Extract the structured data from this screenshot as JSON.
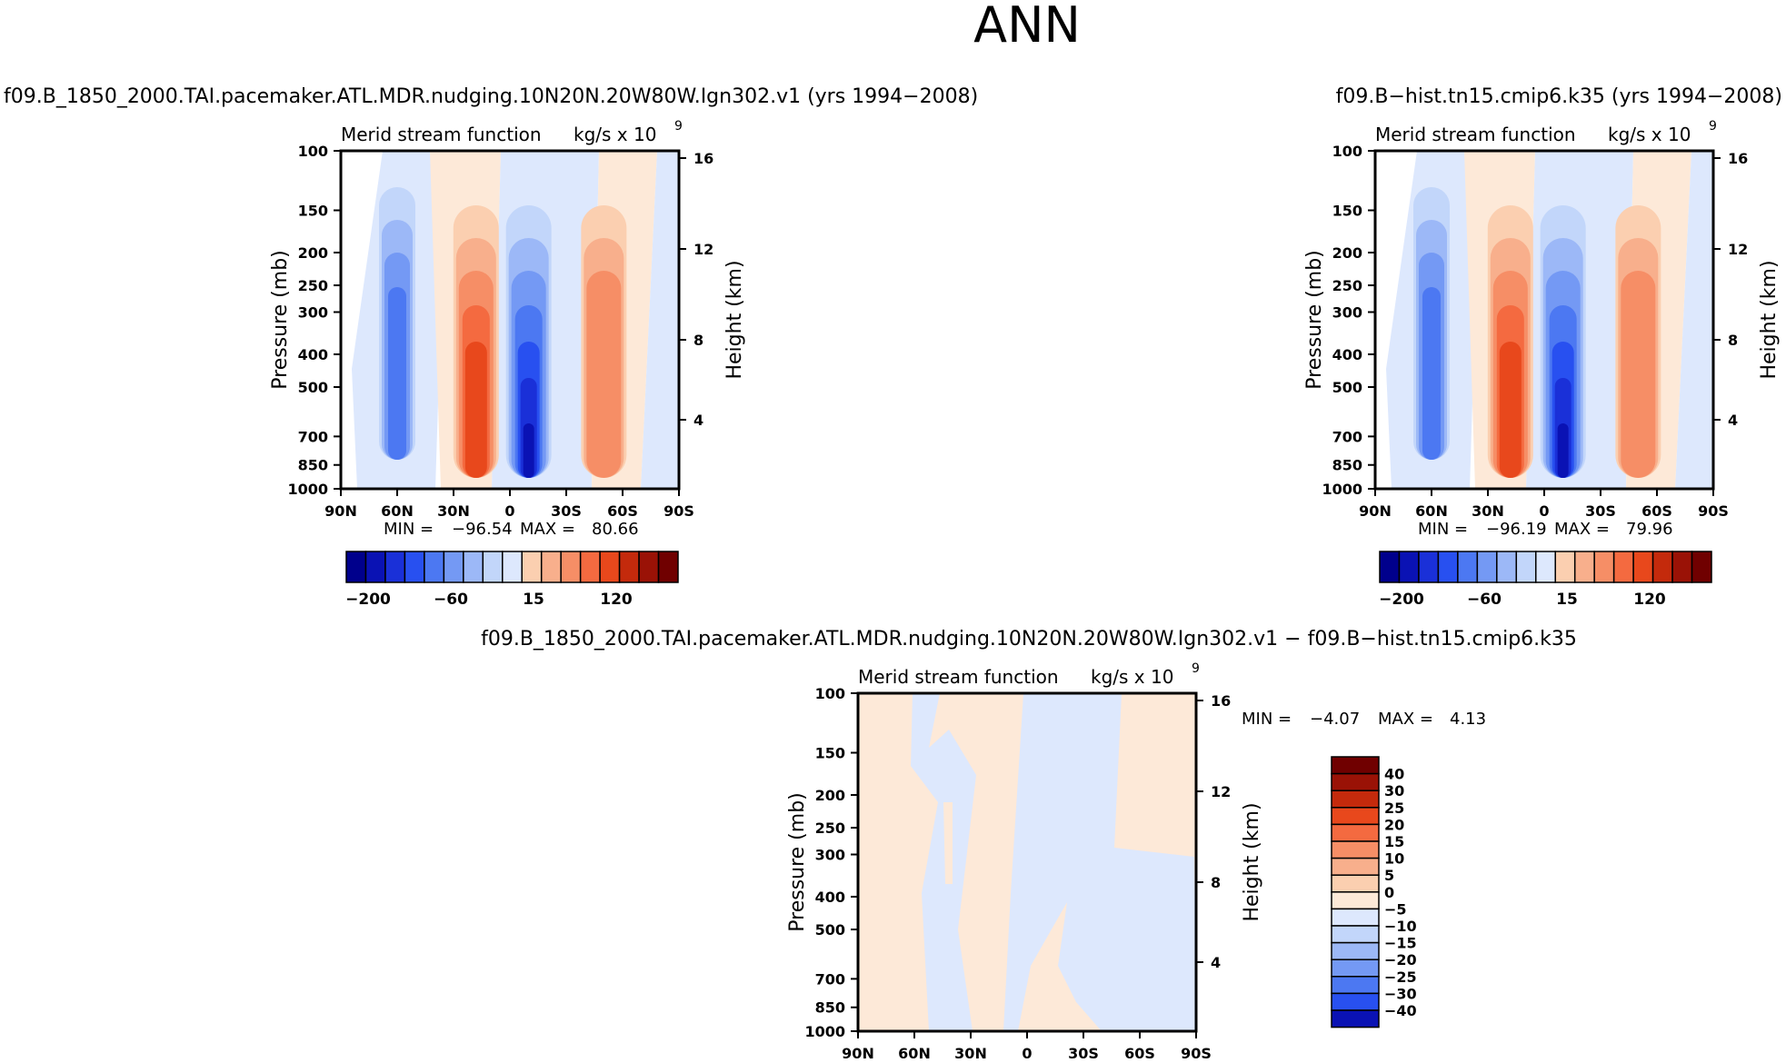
{
  "page_title": "ANN",
  "colors": {
    "neg": [
      "#00008c",
      "#0a12b4",
      "#1a30d8",
      "#2850f0",
      "#4c78f2",
      "#7499f4",
      "#9cb8f7",
      "#c2d6fa",
      "#dde8fd"
    ],
    "pos": [
      "#fde9d8",
      "#fbcfb0",
      "#f8af8c",
      "#f68e66",
      "#f46a40",
      "#e8481c",
      "#c42a0c",
      "#9a1206",
      "#700000"
    ]
  },
  "chart_data": [
    {
      "id": "panel1",
      "type": "contour",
      "run_title": "f09.B_1850_2000.TAI.pacemaker.ATL.MDR.nudging.10N20N.20W80W.Ign302.v1  (yrs  1994−2008)",
      "field_label": "Merid  stream  function",
      "units_label": "kg/s  x  10",
      "units_exp": "9",
      "ylabel": "Pressure  (mb)",
      "y2label": "Height  (km)",
      "yticks": [
        "100",
        "150",
        "200",
        "250",
        "300",
        "400",
        "500",
        "700",
        "850",
        "1000"
      ],
      "y2ticks": [
        "16",
        "12",
        "8",
        "4"
      ],
      "xticks": [
        "90N",
        "60N",
        "30N",
        "0",
        "30S",
        "60S",
        "90S"
      ],
      "min_label": "MIN  =",
      "min_value": "−96.54",
      "max_label": "MAX  =",
      "max_value": "80.66",
      "colorbar_labels": [
        "−200",
        "−60",
        "15",
        "120"
      ],
      "cells": [
        {
          "lat": 60,
          "sign": "neg",
          "peak_level": 4
        },
        {
          "lat": 18,
          "sign": "pos",
          "peak_level": 5
        },
        {
          "lat": -10,
          "sign": "neg",
          "peak_level": 7
        },
        {
          "lat": -50,
          "sign": "pos",
          "peak_level": 3
        }
      ]
    },
    {
      "id": "panel2",
      "type": "contour",
      "run_title": "f09.B−hist.tn15.cmip6.k35  (yrs  1994−2008)",
      "field_label": "Merid  stream  function",
      "units_label": "kg/s  x  10",
      "units_exp": "9",
      "ylabel": "Pressure  (mb)",
      "y2label": "Height  (km)",
      "yticks": [
        "100",
        "150",
        "200",
        "250",
        "300",
        "400",
        "500",
        "700",
        "850",
        "1000"
      ],
      "y2ticks": [
        "16",
        "12",
        "8",
        "4"
      ],
      "xticks": [
        "90N",
        "60N",
        "30N",
        "0",
        "30S",
        "60S",
        "90S"
      ],
      "min_label": "MIN  =",
      "min_value": "−96.19",
      "max_label": "MAX  =",
      "max_value": "79.96",
      "colorbar_labels": [
        "−200",
        "−60",
        "15",
        "120"
      ],
      "cells": [
        {
          "lat": 60,
          "sign": "neg",
          "peak_level": 4
        },
        {
          "lat": 18,
          "sign": "pos",
          "peak_level": 5
        },
        {
          "lat": -10,
          "sign": "neg",
          "peak_level": 7
        },
        {
          "lat": -50,
          "sign": "pos",
          "peak_level": 3
        }
      ]
    },
    {
      "id": "panel3",
      "type": "contour",
      "run_title": "f09.B_1850_2000.TAI.pacemaker.ATL.MDR.nudging.10N20N.20W80W.Ign302.v1  −  f09.B−hist.tn15.cmip6.k35",
      "field_label": "Merid  stream  function",
      "units_label": "kg/s  x  10",
      "units_exp": "9",
      "ylabel": "Pressure  (mb)",
      "y2label": "Height  (km)",
      "yticks": [
        "100",
        "150",
        "200",
        "250",
        "300",
        "400",
        "500",
        "700",
        "850",
        "1000"
      ],
      "y2ticks": [
        "16",
        "12",
        "8",
        "4"
      ],
      "xticks": [
        "90N",
        "60N",
        "30N",
        "0",
        "30S",
        "60S",
        "90S"
      ],
      "min_label": "MIN  =",
      "min_value": "−4.07",
      "max_label": "MAX  =",
      "max_value": "4.13",
      "colorbar_labels": [
        "40",
        "30",
        "25",
        "20",
        "15",
        "10",
        "5",
        "0",
        "−5",
        "−10",
        "−15",
        "−20",
        "−25",
        "−30",
        "−40"
      ]
    }
  ]
}
